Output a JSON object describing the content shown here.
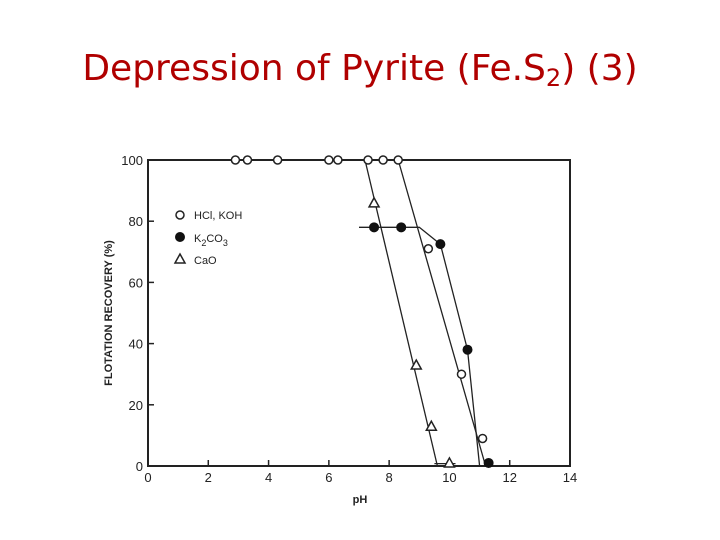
{
  "slide": {
    "title": "Depression of Pyrite (Fe.S",
    "title_sub": "2",
    "title_suffix": ") (3)",
    "title_color": "#b00000"
  },
  "chart_data": {
    "type": "line",
    "xlabel": "pH",
    "ylabel": "FLOTATION RECOVERY (%)",
    "xlim": [
      0,
      14
    ],
    "ylim": [
      0,
      100
    ],
    "xticks": [
      0,
      2,
      4,
      6,
      8,
      10,
      12,
      14
    ],
    "yticks": [
      0,
      20,
      40,
      60,
      80,
      100
    ],
    "grid": false,
    "legend_position": "upper-left",
    "series": [
      {
        "name": "HCl, KOH",
        "marker": "open-circle",
        "points": [
          [
            2.9,
            100
          ],
          [
            3.3,
            100
          ],
          [
            4.3,
            100
          ],
          [
            6.0,
            100
          ],
          [
            6.3,
            100
          ],
          [
            7.3,
            100
          ],
          [
            7.8,
            100
          ],
          [
            8.3,
            100
          ],
          [
            9.3,
            71
          ],
          [
            10.4,
            30
          ],
          [
            11.1,
            9
          ]
        ],
        "line": [
          [
            2.9,
            100
          ],
          [
            8.3,
            100
          ],
          [
            11.2,
            0
          ]
        ]
      },
      {
        "name": "K2CO3",
        "label_main": "K",
        "label_sub": "2",
        "label_rest": "CO",
        "label_sub2": "3",
        "marker": "filled-circle",
        "points": [
          [
            7.5,
            78
          ],
          [
            8.4,
            78
          ],
          [
            9.7,
            72.5
          ],
          [
            10.6,
            38
          ],
          [
            11.3,
            1
          ]
        ],
        "line": [
          [
            7.0,
            78
          ],
          [
            9.0,
            78
          ],
          [
            9.7,
            72.5
          ],
          [
            10.6,
            38
          ],
          [
            11.0,
            0
          ]
        ]
      },
      {
        "name": "CaO",
        "marker": "open-triangle",
        "points": [
          [
            7.5,
            86
          ],
          [
            8.9,
            33
          ],
          [
            9.4,
            13
          ],
          [
            10.0,
            1
          ]
        ],
        "line": [
          [
            7.2,
            100
          ],
          [
            9.6,
            0
          ]
        ],
        "extra_line": [
          [
            9.5,
            0.8
          ],
          [
            10.2,
            0.8
          ]
        ]
      }
    ]
  }
}
